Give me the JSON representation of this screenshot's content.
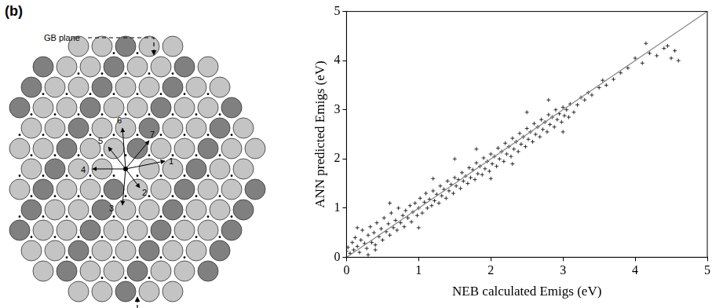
{
  "diagram": {
    "panel_label": "(b)",
    "gb_label": "GB plane",
    "jump_labels": [
      "1",
      "2",
      "3",
      "4",
      "5",
      "6",
      "7"
    ]
  },
  "chart_data": {
    "type": "scatter",
    "x_label": "NEB calculated Emigs (eV)",
    "y_label": "ANN predicted Emigs (eV)",
    "xlim": [
      0,
      5
    ],
    "xticks": [
      0,
      1,
      2,
      3,
      4,
      5
    ],
    "ylim": [
      0,
      5
    ],
    "yticks": [
      0,
      1,
      2,
      3,
      4,
      5
    ],
    "grid": false,
    "series": [
      {
        "type": "scatter",
        "color": "#000000",
        "marker": "cross",
        "x": [
          0.0,
          0.02,
          0.05,
          0.08,
          0.1,
          0.12,
          0.15,
          0.18,
          0.2,
          0.22,
          0.25,
          0.28,
          0.3,
          0.33,
          0.35,
          0.38,
          0.4,
          0.42,
          0.45,
          0.48,
          0.5,
          0.52,
          0.55,
          0.58,
          0.6,
          0.62,
          0.65,
          0.68,
          0.7,
          0.72,
          0.75,
          0.78,
          0.8,
          0.82,
          0.85,
          0.88,
          0.9,
          0.92,
          0.95,
          0.98,
          1.0,
          1.02,
          1.05,
          1.08,
          1.1,
          1.12,
          1.15,
          1.18,
          1.2,
          1.22,
          1.25,
          1.28,
          1.3,
          1.32,
          1.35,
          1.38,
          1.4,
          1.42,
          1.45,
          1.48,
          1.5,
          1.52,
          1.55,
          1.58,
          1.6,
          1.62,
          1.65,
          1.68,
          1.7,
          1.72,
          1.75,
          1.78,
          1.8,
          1.82,
          1.85,
          1.88,
          1.9,
          1.92,
          1.95,
          1.98,
          2.0,
          2.02,
          2.05,
          2.08,
          2.1,
          2.12,
          2.15,
          2.18,
          2.2,
          2.22,
          2.25,
          2.28,
          2.3,
          2.32,
          2.35,
          2.38,
          2.4,
          2.42,
          2.45,
          2.48,
          2.5,
          2.52,
          2.55,
          2.58,
          2.6,
          2.62,
          2.65,
          2.68,
          2.7,
          2.72,
          2.75,
          2.78,
          2.8,
          2.82,
          2.85,
          2.88,
          2.9,
          2.92,
          2.95,
          2.98,
          3.0,
          3.02,
          3.05,
          3.08,
          3.1,
          3.15,
          3.2,
          3.25,
          3.3,
          3.35,
          3.4,
          3.5,
          3.55,
          3.6,
          3.7,
          3.8,
          3.9,
          4.0,
          4.1,
          4.2,
          4.3,
          4.4,
          4.5,
          4.55,
          4.6,
          4.45,
          4.15,
          0.15,
          0.3,
          1.0,
          1.5,
          2.0,
          2.5,
          1.2,
          0.6,
          2.8,
          3.0,
          0.4,
          1.8,
          2.3
        ],
        "values": [
          0.12,
          0.2,
          0.08,
          0.3,
          0.15,
          0.4,
          0.22,
          0.1,
          0.35,
          0.55,
          0.28,
          0.18,
          0.45,
          0.62,
          0.3,
          0.5,
          0.25,
          0.7,
          0.42,
          0.58,
          0.35,
          0.8,
          0.52,
          0.68,
          0.45,
          0.9,
          0.6,
          0.75,
          0.55,
          1.0,
          0.7,
          0.85,
          0.62,
          0.95,
          0.8,
          1.05,
          0.72,
          0.92,
          1.1,
          0.85,
          1.0,
          1.2,
          0.9,
          1.12,
          1.3,
          1.0,
          1.18,
          1.05,
          1.35,
          1.15,
          1.28,
          1.1,
          1.45,
          1.25,
          1.38,
          1.2,
          1.55,
          1.35,
          1.48,
          1.3,
          1.62,
          1.45,
          1.58,
          1.4,
          1.72,
          1.55,
          1.65,
          1.5,
          1.82,
          1.62,
          1.78,
          1.58,
          1.92,
          1.7,
          1.85,
          1.68,
          2.02,
          1.8,
          1.95,
          1.75,
          2.1,
          1.9,
          2.05,
          1.85,
          2.22,
          2.0,
          2.15,
          1.95,
          2.32,
          2.1,
          2.25,
          2.05,
          2.42,
          2.2,
          2.35,
          2.15,
          2.52,
          2.3,
          2.45,
          2.25,
          2.62,
          2.4,
          2.55,
          2.35,
          2.72,
          2.5,
          2.65,
          2.45,
          2.8,
          2.6,
          2.75,
          2.55,
          2.9,
          2.7,
          2.85,
          2.65,
          3.0,
          2.8,
          2.92,
          2.75,
          3.05,
          2.88,
          3.0,
          2.85,
          3.12,
          2.95,
          3.1,
          3.25,
          3.2,
          3.35,
          3.3,
          3.45,
          3.6,
          3.5,
          3.62,
          3.75,
          3.85,
          4.05,
          3.95,
          4.15,
          4.1,
          4.25,
          4.05,
          4.2,
          4.0,
          4.3,
          4.35,
          0.6,
          0.05,
          0.6,
          2.0,
          1.6,
          2.95,
          1.6,
          1.1,
          3.2,
          2.55,
          0.15,
          2.2,
          1.9
        ]
      },
      {
        "type": "line",
        "color": "#888888",
        "line_style": "solid",
        "x": [
          0,
          5
        ],
        "values": [
          0,
          5
        ]
      }
    ]
  }
}
